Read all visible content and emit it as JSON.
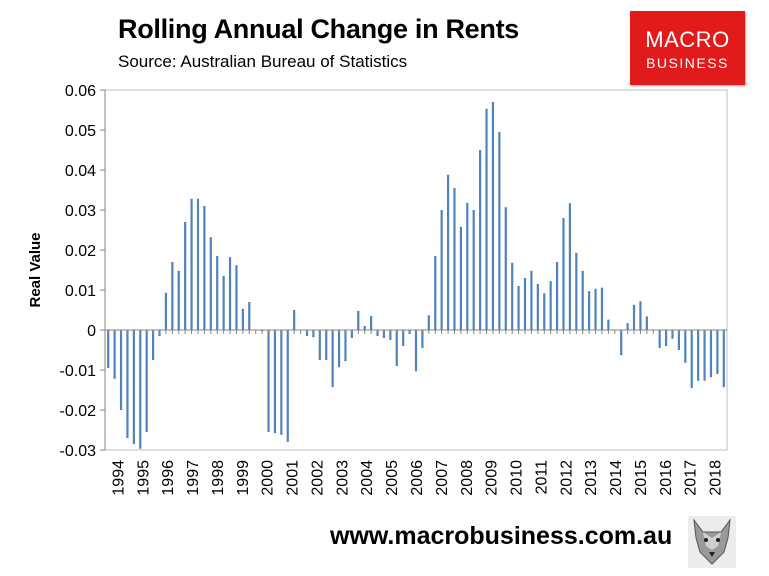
{
  "header": {
    "title": "Rolling Annual Change in Rents",
    "subtitle": "Source: Australian Bureau of Statistics"
  },
  "logo": {
    "line1": "MACRO",
    "line2": "BUSINESS",
    "color": "#e11b1b"
  },
  "footer": {
    "url": "www.macrobusiness.com.au",
    "icon": "wolf-icon"
  },
  "colors": {
    "bar": "#4f81bd",
    "axis": "#868686",
    "frame": "#bfbfbf"
  },
  "chart_data": {
    "type": "bar",
    "title": "Rolling Annual Change in Rents",
    "xlabel": "",
    "ylabel": "Real Value",
    "ylim": [
      -0.03,
      0.06
    ],
    "yticks": [
      "0.06",
      "0.05",
      "0.04",
      "0.03",
      "0.02",
      "0.01",
      "0",
      "-0.01",
      "-0.02",
      "-0.03"
    ],
    "ytick_values": [
      0.06,
      0.05,
      0.04,
      0.03,
      0.02,
      0.01,
      0,
      -0.01,
      -0.02,
      -0.03
    ],
    "grid": false,
    "legend": "none",
    "x_tick_labels": [
      "1994",
      "1995",
      "1996",
      "1997",
      "1998",
      "1999",
      "2000",
      "2001",
      "2002",
      "2003",
      "2004",
      "2005",
      "2006",
      "2007",
      "2008",
      "2009",
      "2010",
      "2011",
      "2012",
      "2013",
      "2014",
      "2015",
      "2016",
      "2017",
      "2018"
    ],
    "series": [
      {
        "name": "Real Value",
        "values": [
          -0.0095,
          -0.0122,
          -0.02,
          -0.027,
          -0.0285,
          -0.0297,
          -0.0255,
          -0.0075,
          -0.0015,
          0.0093,
          0.017,
          0.0148,
          0.027,
          0.0328,
          0.0328,
          0.031,
          0.0232,
          0.0185,
          0.0135,
          0.0182,
          0.0162,
          0.0053,
          0.007,
          0.0,
          -0.0003,
          -0.0255,
          -0.0258,
          -0.0262,
          -0.028,
          0.005,
          0.0,
          -0.0015,
          -0.0018,
          -0.0075,
          -0.0075,
          -0.0143,
          -0.0093,
          -0.0078,
          -0.002,
          0.0048,
          0.001,
          0.0035,
          -0.0015,
          -0.002,
          -0.0025,
          -0.009,
          -0.004,
          -0.001,
          -0.0103,
          -0.0045,
          0.0037,
          0.0185,
          0.03,
          0.0388,
          0.0355,
          0.0258,
          0.0318,
          0.03,
          0.045,
          0.0553,
          0.057,
          0.0495,
          0.0307,
          0.0168,
          0.011,
          0.013,
          0.0148,
          0.0115,
          0.0092,
          0.0122,
          0.017,
          0.028,
          0.0317,
          0.0193,
          0.0148,
          0.0097,
          0.0103,
          0.0106,
          0.0026,
          0.0,
          -0.0063,
          0.0017,
          0.0063,
          0.0072,
          0.0034,
          0.0,
          -0.0045,
          -0.004,
          -0.0022,
          -0.005,
          -0.0082,
          -0.0145,
          -0.0127,
          -0.0127,
          -0.0118,
          -0.011,
          -0.0143
        ]
      }
    ]
  }
}
